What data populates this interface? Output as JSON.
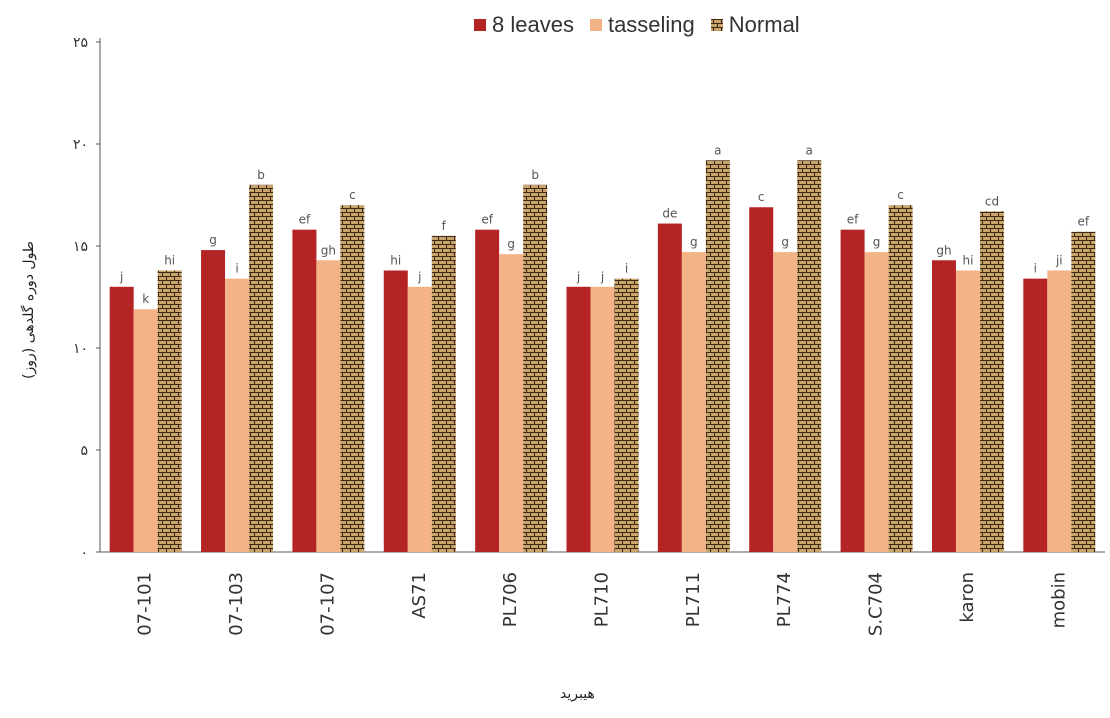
{
  "chart_data": {
    "type": "bar",
    "ylabel": "طول دوره گلدهی (روز)",
    "xlabel": "هیبرید",
    "ylim": [
      0,
      25
    ],
    "yticks": [
      {
        "value": 0,
        "label": "۰"
      },
      {
        "value": 5,
        "label": "۵"
      },
      {
        "value": 10,
        "label": "۱۰"
      },
      {
        "value": 15,
        "label": "۱۵"
      },
      {
        "value": 20,
        "label": "۲۰"
      },
      {
        "value": 25,
        "label": "۲۵"
      }
    ],
    "grid": false,
    "legend_position": "top",
    "categories": [
      "07-101",
      "07-103",
      "07-107",
      "AS71",
      "PL706",
      "PL710",
      "PL711",
      "PL774",
      "S.C704",
      "karon",
      "mobin"
    ],
    "series": [
      {
        "name": "8 leaves",
        "color": "#b52424",
        "pattern": "solid",
        "values": [
          13.0,
          14.8,
          15.8,
          13.8,
          15.8,
          13.0,
          16.1,
          16.9,
          15.8,
          14.3,
          13.4
        ],
        "letters": [
          "j",
          "g",
          "ef",
          "hi",
          "ef",
          "j",
          "de",
          "c",
          "ef",
          "gh",
          "i"
        ]
      },
      {
        "name": "tasseling",
        "color": "#f4b386",
        "pattern": "solid",
        "values": [
          11.9,
          13.4,
          14.3,
          13.0,
          14.6,
          13.0,
          14.7,
          14.7,
          14.7,
          13.8,
          13.8
        ],
        "letters": [
          "k",
          "i",
          "gh",
          "j",
          "g",
          "j",
          "g",
          "g",
          "g",
          "hi",
          "ji"
        ]
      },
      {
        "name": "Normal",
        "color": "#c9a46b",
        "pattern": "brick",
        "values": [
          13.8,
          18.0,
          17.0,
          15.5,
          18.0,
          13.4,
          19.2,
          19.2,
          17.0,
          16.7,
          15.7
        ],
        "letters": [
          "hi",
          "b",
          "c",
          "f",
          "b",
          "i",
          "a",
          "a",
          "c",
          "cd",
          "ef"
        ]
      }
    ]
  }
}
